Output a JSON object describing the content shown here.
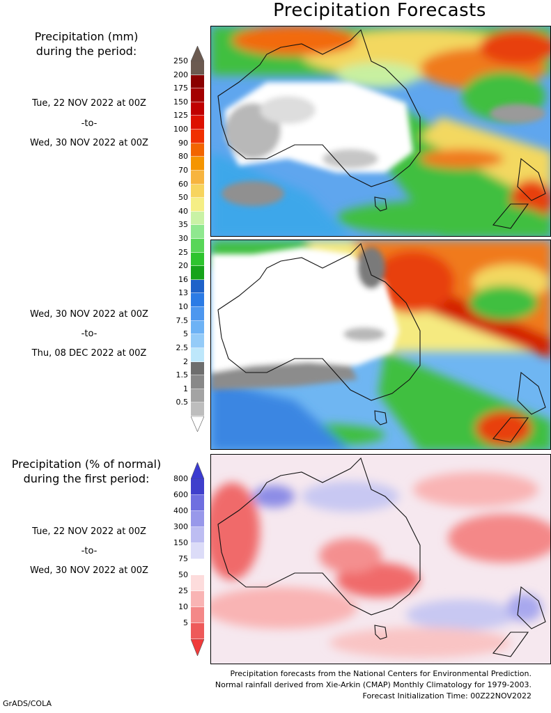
{
  "title": "Precipitation Forecasts",
  "legend1": {
    "header_line1": "Precipitation (mm)",
    "header_line2": "during the period:",
    "labels": [
      "250",
      "200",
      "175",
      "150",
      "125",
      "100",
      "90",
      "80",
      "70",
      "60",
      "50",
      "40",
      "35",
      "30",
      "25",
      "20",
      "16",
      "13",
      "10",
      "7.5",
      "5",
      "2.5",
      "2",
      "1.5",
      "1",
      "0.5"
    ],
    "colors": [
      "#6b5a50",
      "#8a0000",
      "#a40000",
      "#c00000",
      "#dd1000",
      "#f03000",
      "#f26500",
      "#f59500",
      "#f7b43f",
      "#f7d45e",
      "#f5ee85",
      "#c9f2a5",
      "#8fe88f",
      "#58d658",
      "#2ec42e",
      "#16a31a",
      "#1e62c9",
      "#2c7be5",
      "#4d97ef",
      "#6db2f5",
      "#94cbf8",
      "#bde7fb",
      "#6e6e6e",
      "#888888",
      "#a3a3a3",
      "#bdbdbd"
    ],
    "max_arrow_color": "#6b5a50",
    "min_arrow_color": "#ffffff"
  },
  "legend2": {
    "header_line1": "Precipitation (% of normal)",
    "header_line2": "during the first period:",
    "labels": [
      "800",
      "600",
      "400",
      "300",
      "150",
      "75",
      "50",
      "25",
      "10",
      "5"
    ],
    "colors": [
      "#3f3fcc",
      "#6f6fe0",
      "#9898ea",
      "#bdbdf2",
      "#dcdcf8",
      "#ffffff",
      "#fddcdc",
      "#f9b4b4",
      "#f48888",
      "#ee5a5a"
    ],
    "max_arrow_color": "#3a3ad0",
    "min_arrow_color": "#f03a3a"
  },
  "period1": {
    "start": "Tue, 22 NOV 2022 at 00Z",
    "to": "-to-",
    "end": "Wed, 30 NOV 2022 at 00Z"
  },
  "period2": {
    "start": "Wed, 30 NOV 2022 at 00Z",
    "to": "-to-",
    "end": "Thu, 08 DEC 2022 at 00Z"
  },
  "period3": {
    "start": "Tue, 22 NOV 2022 at 00Z",
    "to": "-to-",
    "end": "Wed, 30 NOV 2022 at 00Z"
  },
  "footer": {
    "line1": "Precipitation forecasts from the National Centers for Environmental Prediction.",
    "line2": "Normal rainfall derived from Xie-Arkin (CMAP) Monthly Climatology for 1979-2003.",
    "line3": "Forecast Initialization Time: 00Z22NOV2022"
  },
  "credit": "GrADS/COLA"
}
